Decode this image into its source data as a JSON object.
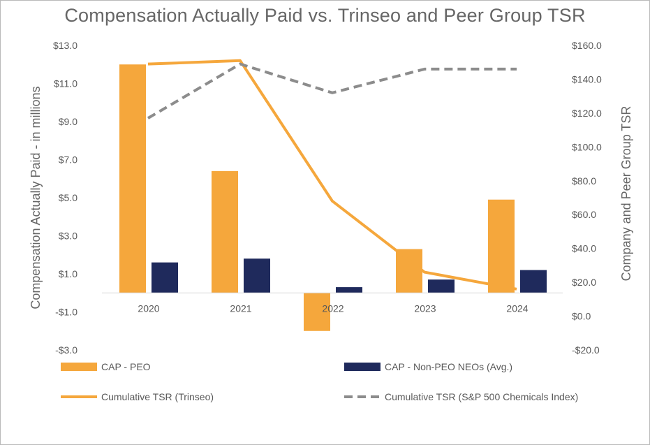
{
  "chart_data": {
    "type": "bar",
    "title": "Compensation Actually Paid vs. Trinseo and Peer Group TSR",
    "categories": [
      "2020",
      "2021",
      "2022",
      "2023",
      "2024"
    ],
    "ylabel": "Compensation Actually Paid - in millions",
    "y2label": "Company and Peer Group TSR",
    "ylim": [
      -3,
      13
    ],
    "y_ticks": [
      13,
      11,
      9,
      7,
      5,
      3,
      1,
      -1,
      -3
    ],
    "y_tick_labels": [
      "$13.0",
      "$11.0",
      "$9.0",
      "$7.0",
      "$5.0",
      "$3.0",
      "$1.0",
      "-$1.0",
      "-$3.0"
    ],
    "y2lim": [
      -20,
      160
    ],
    "y2_ticks": [
      160,
      140,
      120,
      100,
      80,
      60,
      40,
      20,
      0,
      -20
    ],
    "y2_tick_labels": [
      "$160.0",
      "$140.0",
      "$120.0",
      "$100.0",
      "$80.0",
      "$60.0",
      "$40.0",
      "$20.0",
      "$0.0",
      "-$20.0"
    ],
    "bar_series": [
      {
        "name": "CAP - PEO",
        "color": "#F5A73C",
        "values": [
          12.0,
          6.4,
          -2.0,
          2.3,
          4.9
        ]
      },
      {
        "name": "CAP - Non-PEO NEOs (Avg.)",
        "color": "#1F2A5C",
        "values": [
          1.6,
          1.8,
          0.3,
          0.7,
          1.2
        ]
      }
    ],
    "line_series": [
      {
        "name": "Cumulative TSR (Trinseo)",
        "color": "#F5A73C",
        "style": "solid",
        "axis": "right",
        "values": [
          149,
          151,
          68,
          26,
          16
        ]
      },
      {
        "name": "Cumulative TSR (S&P 500 Chemicals Index)",
        "color": "#8C8C8C",
        "style": "dashed",
        "axis": "right",
        "values": [
          117,
          149,
          132,
          146,
          146
        ]
      }
    ],
    "legend_position": "bottom"
  }
}
